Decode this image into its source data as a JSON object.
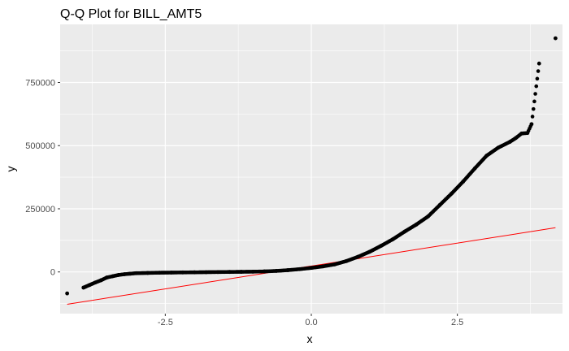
{
  "chart_data": {
    "type": "scatter",
    "title": "Q-Q Plot for BILL_AMT5",
    "xlabel": "x",
    "ylabel": "y",
    "xlim": [
      -4.3,
      4.3
    ],
    "ylim": [
      -165000,
      980000
    ],
    "x_ticks": [
      -2.5,
      0.0,
      2.5
    ],
    "x_tick_labels": [
      "-2.5",
      "0.0",
      "2.5"
    ],
    "y_ticks": [
      0,
      250000,
      500000,
      750000
    ],
    "y_tick_labels": [
      "0",
      "250000",
      "500000",
      "750000"
    ],
    "grid": true,
    "legend": "none",
    "colors": {
      "panel_background": "#ebebeb",
      "grid": "#ffffff",
      "points": "#000000",
      "reference_line": "#ff0000"
    },
    "reference_line": {
      "x": [
        -4.18,
        4.18
      ],
      "y": [
        -128000,
        175000
      ]
    },
    "series": [
      {
        "type": "points",
        "x": [
          -4.18,
          -3.9,
          -3.8,
          -3.7,
          -3.6,
          -3.5,
          -3.4,
          -3.3,
          -3.2,
          -3.1,
          -3.0,
          -2.8,
          -2.6,
          -2.4,
          -2.2,
          -2.0,
          -1.8,
          -1.6,
          -1.4,
          -1.2,
          -1.0,
          -0.8,
          -0.6,
          -0.4,
          -0.2,
          0.0,
          0.2,
          0.4,
          0.6,
          0.8,
          1.0,
          1.2,
          1.4,
          1.6,
          1.8,
          2.0,
          2.2,
          2.4,
          2.6,
          2.8,
          3.0,
          3.2,
          3.4,
          3.5,
          3.6,
          3.7,
          3.77,
          3.9,
          4.18
        ],
        "y": [
          -85000,
          -62000,
          -52000,
          -42000,
          -33000,
          -22000,
          -17000,
          -12000,
          -9000,
          -7000,
          -5000,
          -4000,
          -3000,
          -2500,
          -2000,
          -1500,
          -1000,
          -500,
          0,
          500,
          1000,
          2000,
          4000,
          7000,
          11000,
          16000,
          22000,
          30000,
          43000,
          60000,
          80000,
          104000,
          130000,
          160000,
          188000,
          220000,
          265000,
          310000,
          358000,
          410000,
          460000,
          492000,
          515000,
          530000,
          548000,
          550000,
          585000,
          825000,
          925000
        ]
      }
    ]
  }
}
